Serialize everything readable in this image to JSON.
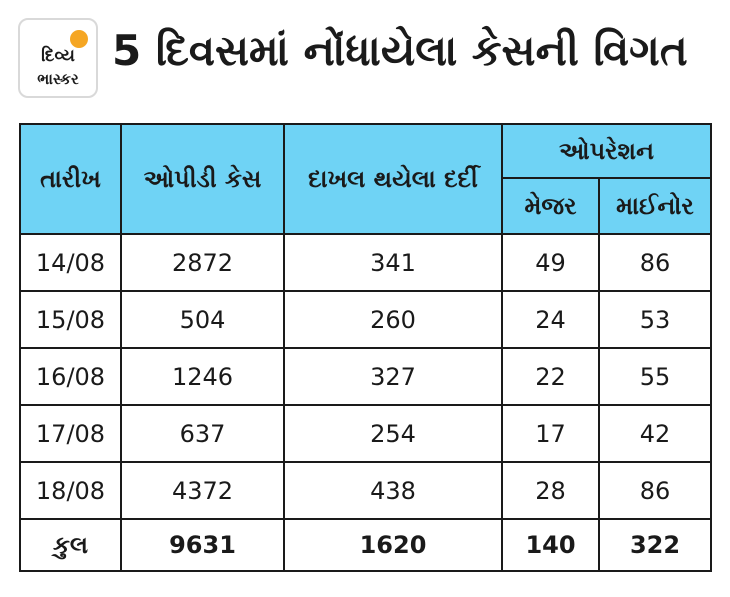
{
  "logo": {
    "line1": "દિવ્ય",
    "line2": "ભાસ્કર"
  },
  "title": "5 દિવસમાં નોંધાયેલા કેસની વિગત",
  "table": {
    "headers": {
      "date": "તારીખ",
      "opd": "ઓપીડી કેસ",
      "admitted": "દાખલ થયેલા દર્દી",
      "operation": "ઓપરેશન",
      "major": "મેજર",
      "minor": "માઈનોર"
    },
    "rows": [
      {
        "date": "14/08",
        "opd": "2872",
        "admitted": "341",
        "major": "49",
        "minor": "86"
      },
      {
        "date": "15/08",
        "opd": "504",
        "admitted": "260",
        "major": "24",
        "minor": "53"
      },
      {
        "date": "16/08",
        "opd": "1246",
        "admitted": "327",
        "major": "22",
        "minor": "55"
      },
      {
        "date": "17/08",
        "opd": "637",
        "admitted": "254",
        "major": "17",
        "minor": "42"
      },
      {
        "date": "18/08",
        "opd": "4372",
        "admitted": "438",
        "major": "28",
        "minor": "86"
      }
    ],
    "total": {
      "label": "કુલ",
      "opd": "9631",
      "admitted": "1620",
      "major": "140",
      "minor": "322"
    }
  },
  "colors": {
    "header_bg": "#6fd3f5",
    "logo_sun": "#f5a623",
    "border": "#1a1a1a"
  }
}
